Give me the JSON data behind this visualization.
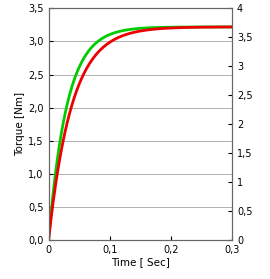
{
  "title": "",
  "xlabel": "Time [ Sec]",
  "ylabel": "Torque [Nm]",
  "xlim": [
    0,
    0.3
  ],
  "ylim_left": [
    0,
    3.5
  ],
  "ylim_right": [
    0,
    4
  ],
  "left_ticks": [
    0.0,
    0.5,
    1.0,
    1.5,
    2.0,
    2.5,
    3.0,
    3.5
  ],
  "left_tick_labels": [
    "0,0",
    "0,5",
    "1,0",
    "1,5",
    "2,0",
    "2,5",
    "3,0",
    "3,5"
  ],
  "right_ticks": [
    0,
    0.5,
    1.0,
    1.5,
    2.0,
    2.5,
    3.0,
    3.5,
    4.0
  ],
  "right_tick_labels": [
    "0",
    "0,5",
    "1",
    "1,5",
    "2",
    "2,5",
    "3",
    "3,5",
    "4"
  ],
  "xticks": [
    0,
    0.1,
    0.2,
    0.3
  ],
  "xtick_labels": [
    "0",
    "0,1",
    "0,2",
    "0,3"
  ],
  "red_color": "#ee0000",
  "green_color": "#00cc00",
  "bg_color": "#ffffff",
  "grid_color": "#b0b0b0",
  "line_width": 2.0,
  "saturation_value": 3.22,
  "figsize": [
    2.7,
    2.79
  ],
  "dpi": 100
}
